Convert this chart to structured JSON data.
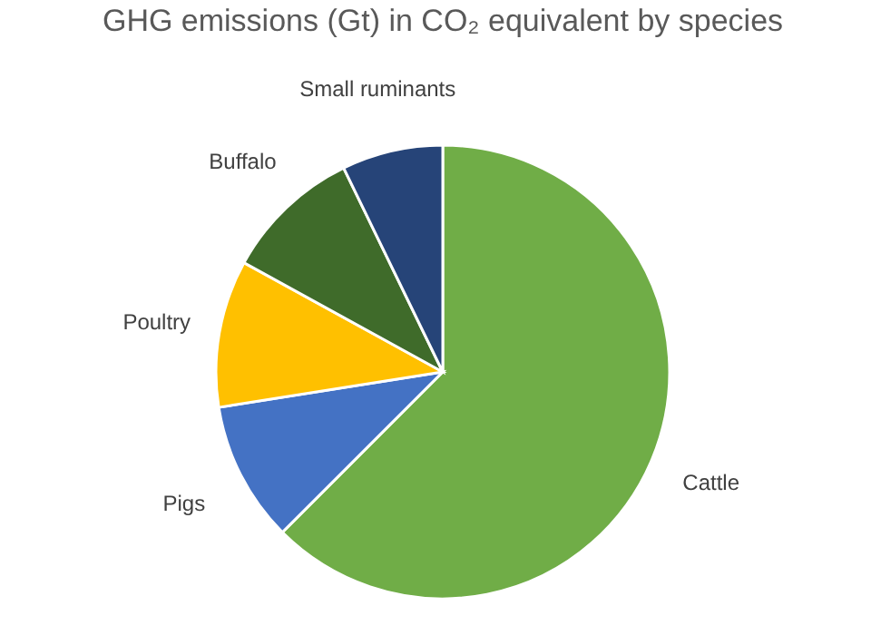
{
  "chart_data": {
    "type": "pie",
    "title": "GHG emissions (Gt) in CO₂ equivalent by species",
    "categories": [
      "Cattle",
      "Pigs",
      "Poultry",
      "Buffalo",
      "Small ruminants"
    ],
    "values": [
      62.5,
      10,
      10.5,
      9.8,
      7.2
    ],
    "colors": [
      "#70ad47",
      "#4472c4",
      "#ffc000",
      "#3f6b2a",
      "#264478"
    ]
  }
}
